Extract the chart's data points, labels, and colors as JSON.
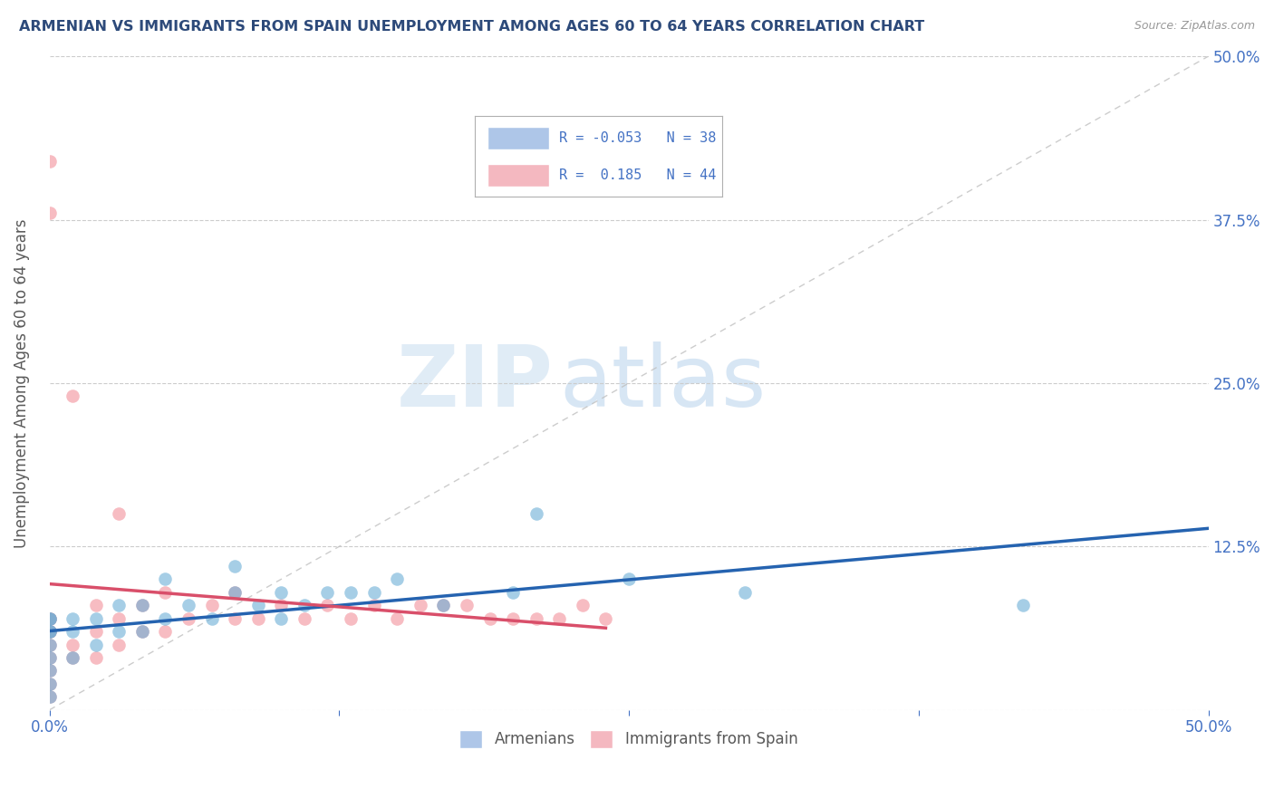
{
  "title": "ARMENIAN VS IMMIGRANTS FROM SPAIN UNEMPLOYMENT AMONG AGES 60 TO 64 YEARS CORRELATION CHART",
  "source": "Source: ZipAtlas.com",
  "ylabel": "Unemployment Among Ages 60 to 64 years",
  "xlim": [
    0,
    0.5
  ],
  "ylim": [
    0,
    0.5
  ],
  "xticks": [
    0.0,
    0.125,
    0.25,
    0.375,
    0.5
  ],
  "yticks": [
    0.0,
    0.125,
    0.25,
    0.375,
    0.5
  ],
  "xticklabels_left": "0.0%",
  "xticklabels_right": "50.0%",
  "right_yticklabels": [
    "",
    "12.5%",
    "25.0%",
    "37.5%",
    "50.0%"
  ],
  "armenian_color": "#6baed6",
  "spain_color": "#f4a0a8",
  "armenian_R": -0.053,
  "armenian_N": 38,
  "spain_R": 0.185,
  "spain_N": 44,
  "legend_label_armenian": "Armenians",
  "legend_label_spain": "Immigrants from Spain",
  "watermark_zip": "ZIP",
  "watermark_atlas": "atlas",
  "armenian_x": [
    0.0,
    0.0,
    0.0,
    0.0,
    0.0,
    0.0,
    0.0,
    0.0,
    0.0,
    0.01,
    0.01,
    0.01,
    0.02,
    0.02,
    0.03,
    0.03,
    0.04,
    0.04,
    0.05,
    0.05,
    0.06,
    0.07,
    0.08,
    0.08,
    0.09,
    0.1,
    0.1,
    0.11,
    0.12,
    0.13,
    0.14,
    0.15,
    0.17,
    0.2,
    0.21,
    0.25,
    0.3,
    0.42
  ],
  "armenian_y": [
    0.01,
    0.02,
    0.03,
    0.04,
    0.05,
    0.06,
    0.06,
    0.07,
    0.07,
    0.04,
    0.06,
    0.07,
    0.05,
    0.07,
    0.06,
    0.08,
    0.06,
    0.08,
    0.07,
    0.1,
    0.08,
    0.07,
    0.09,
    0.11,
    0.08,
    0.07,
    0.09,
    0.08,
    0.09,
    0.09,
    0.09,
    0.1,
    0.08,
    0.09,
    0.15,
    0.1,
    0.09,
    0.08
  ],
  "spain_x": [
    0.0,
    0.0,
    0.0,
    0.0,
    0.0,
    0.0,
    0.0,
    0.0,
    0.0,
    0.0,
    0.0,
    0.01,
    0.01,
    0.01,
    0.02,
    0.02,
    0.02,
    0.03,
    0.03,
    0.03,
    0.04,
    0.04,
    0.05,
    0.05,
    0.06,
    0.07,
    0.08,
    0.08,
    0.09,
    0.1,
    0.11,
    0.12,
    0.13,
    0.14,
    0.15,
    0.16,
    0.17,
    0.18,
    0.19,
    0.2,
    0.21,
    0.22,
    0.23,
    0.24
  ],
  "spain_y": [
    0.01,
    0.02,
    0.03,
    0.04,
    0.05,
    0.06,
    0.06,
    0.07,
    0.07,
    0.42,
    0.38,
    0.04,
    0.05,
    0.24,
    0.04,
    0.06,
    0.08,
    0.05,
    0.07,
    0.15,
    0.06,
    0.08,
    0.06,
    0.09,
    0.07,
    0.08,
    0.07,
    0.09,
    0.07,
    0.08,
    0.07,
    0.08,
    0.07,
    0.08,
    0.07,
    0.08,
    0.08,
    0.08,
    0.07,
    0.07,
    0.07,
    0.07,
    0.08,
    0.07
  ],
  "title_color": "#2d4a7a",
  "axis_label_color": "#595959",
  "tick_label_color_blue": "#4472c4",
  "grid_color": "#cccccc",
  "blue_line_color": "#2563b0",
  "pink_line_color": "#d94f6a",
  "ref_line_color": "#c0c0c0",
  "legend_text_color": "#4472c4",
  "legend_box_color": "#e8e8e8"
}
